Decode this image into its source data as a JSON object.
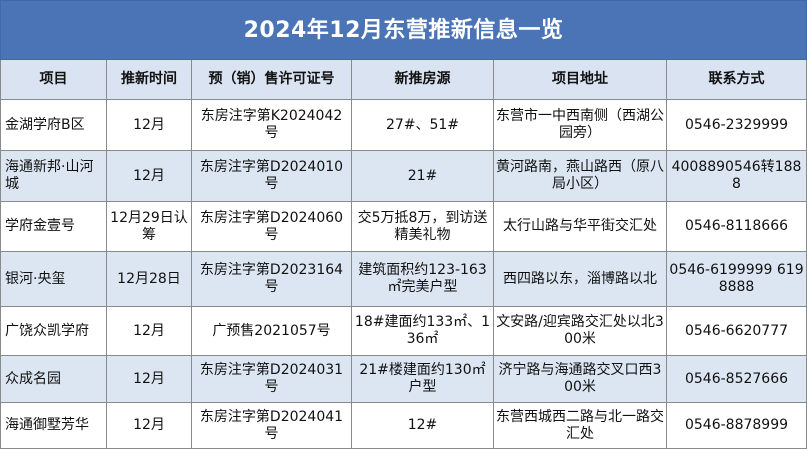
{
  "title": "2024年12月东营推新信息一览",
  "columns": [
    "项目",
    "推新时间",
    "预（销）售许可证号",
    "新推房源",
    "项目地址",
    "联系方式"
  ],
  "rows": [
    {
      "project": "金湖学府B区",
      "time": "12月",
      "license": "东房注字第K2024042号",
      "units": "27#、51#",
      "address": "东营市一中西南侧（西湖公园旁）",
      "contact": "0546-2329999"
    },
    {
      "project": "海通新邦·山河城",
      "time": "12月",
      "license": "东房注字第D2024010号",
      "units": "21#",
      "address": "黄河路南，燕山路西（原八局小区）",
      "contact": "4008890546转1888"
    },
    {
      "project": "学府金壹号",
      "time": "12月29日认筹",
      "license": "东房注字第D2024060号",
      "units": "交5万抵8万，到访送精美礼物",
      "address": "太行山路与华平街交汇处",
      "contact": "0546-8118666"
    },
    {
      "project": "银河·央玺",
      "time": "12月28日",
      "license": "东房注字第D2023164号",
      "units": "建筑面积约123-163㎡完美户型",
      "address": "西四路以东，淄博路以北",
      "contact": "0546-6199999 6198888"
    },
    {
      "project": "广饶众凯学府",
      "time": "12月",
      "license": "广预售2021057号",
      "units": "18#建面约133㎡、136㎡",
      "address": "文安路/迎宾路交汇处以北300米",
      "contact": "0546-6620777"
    },
    {
      "project": "众成名园",
      "time": "12月",
      "license": "东房注字第D2024031号",
      "units": "21#楼建面约130㎡户型",
      "address": "济宁路与海通路交叉口西300米",
      "contact": "0546-8527666"
    },
    {
      "project": "海通御墅芳华",
      "time": "12月",
      "license": "东房注字第D2024041号",
      "units": "12#",
      "address": "东营西城西二路与北一路交汇处",
      "contact": "0546-8878999"
    }
  ]
}
